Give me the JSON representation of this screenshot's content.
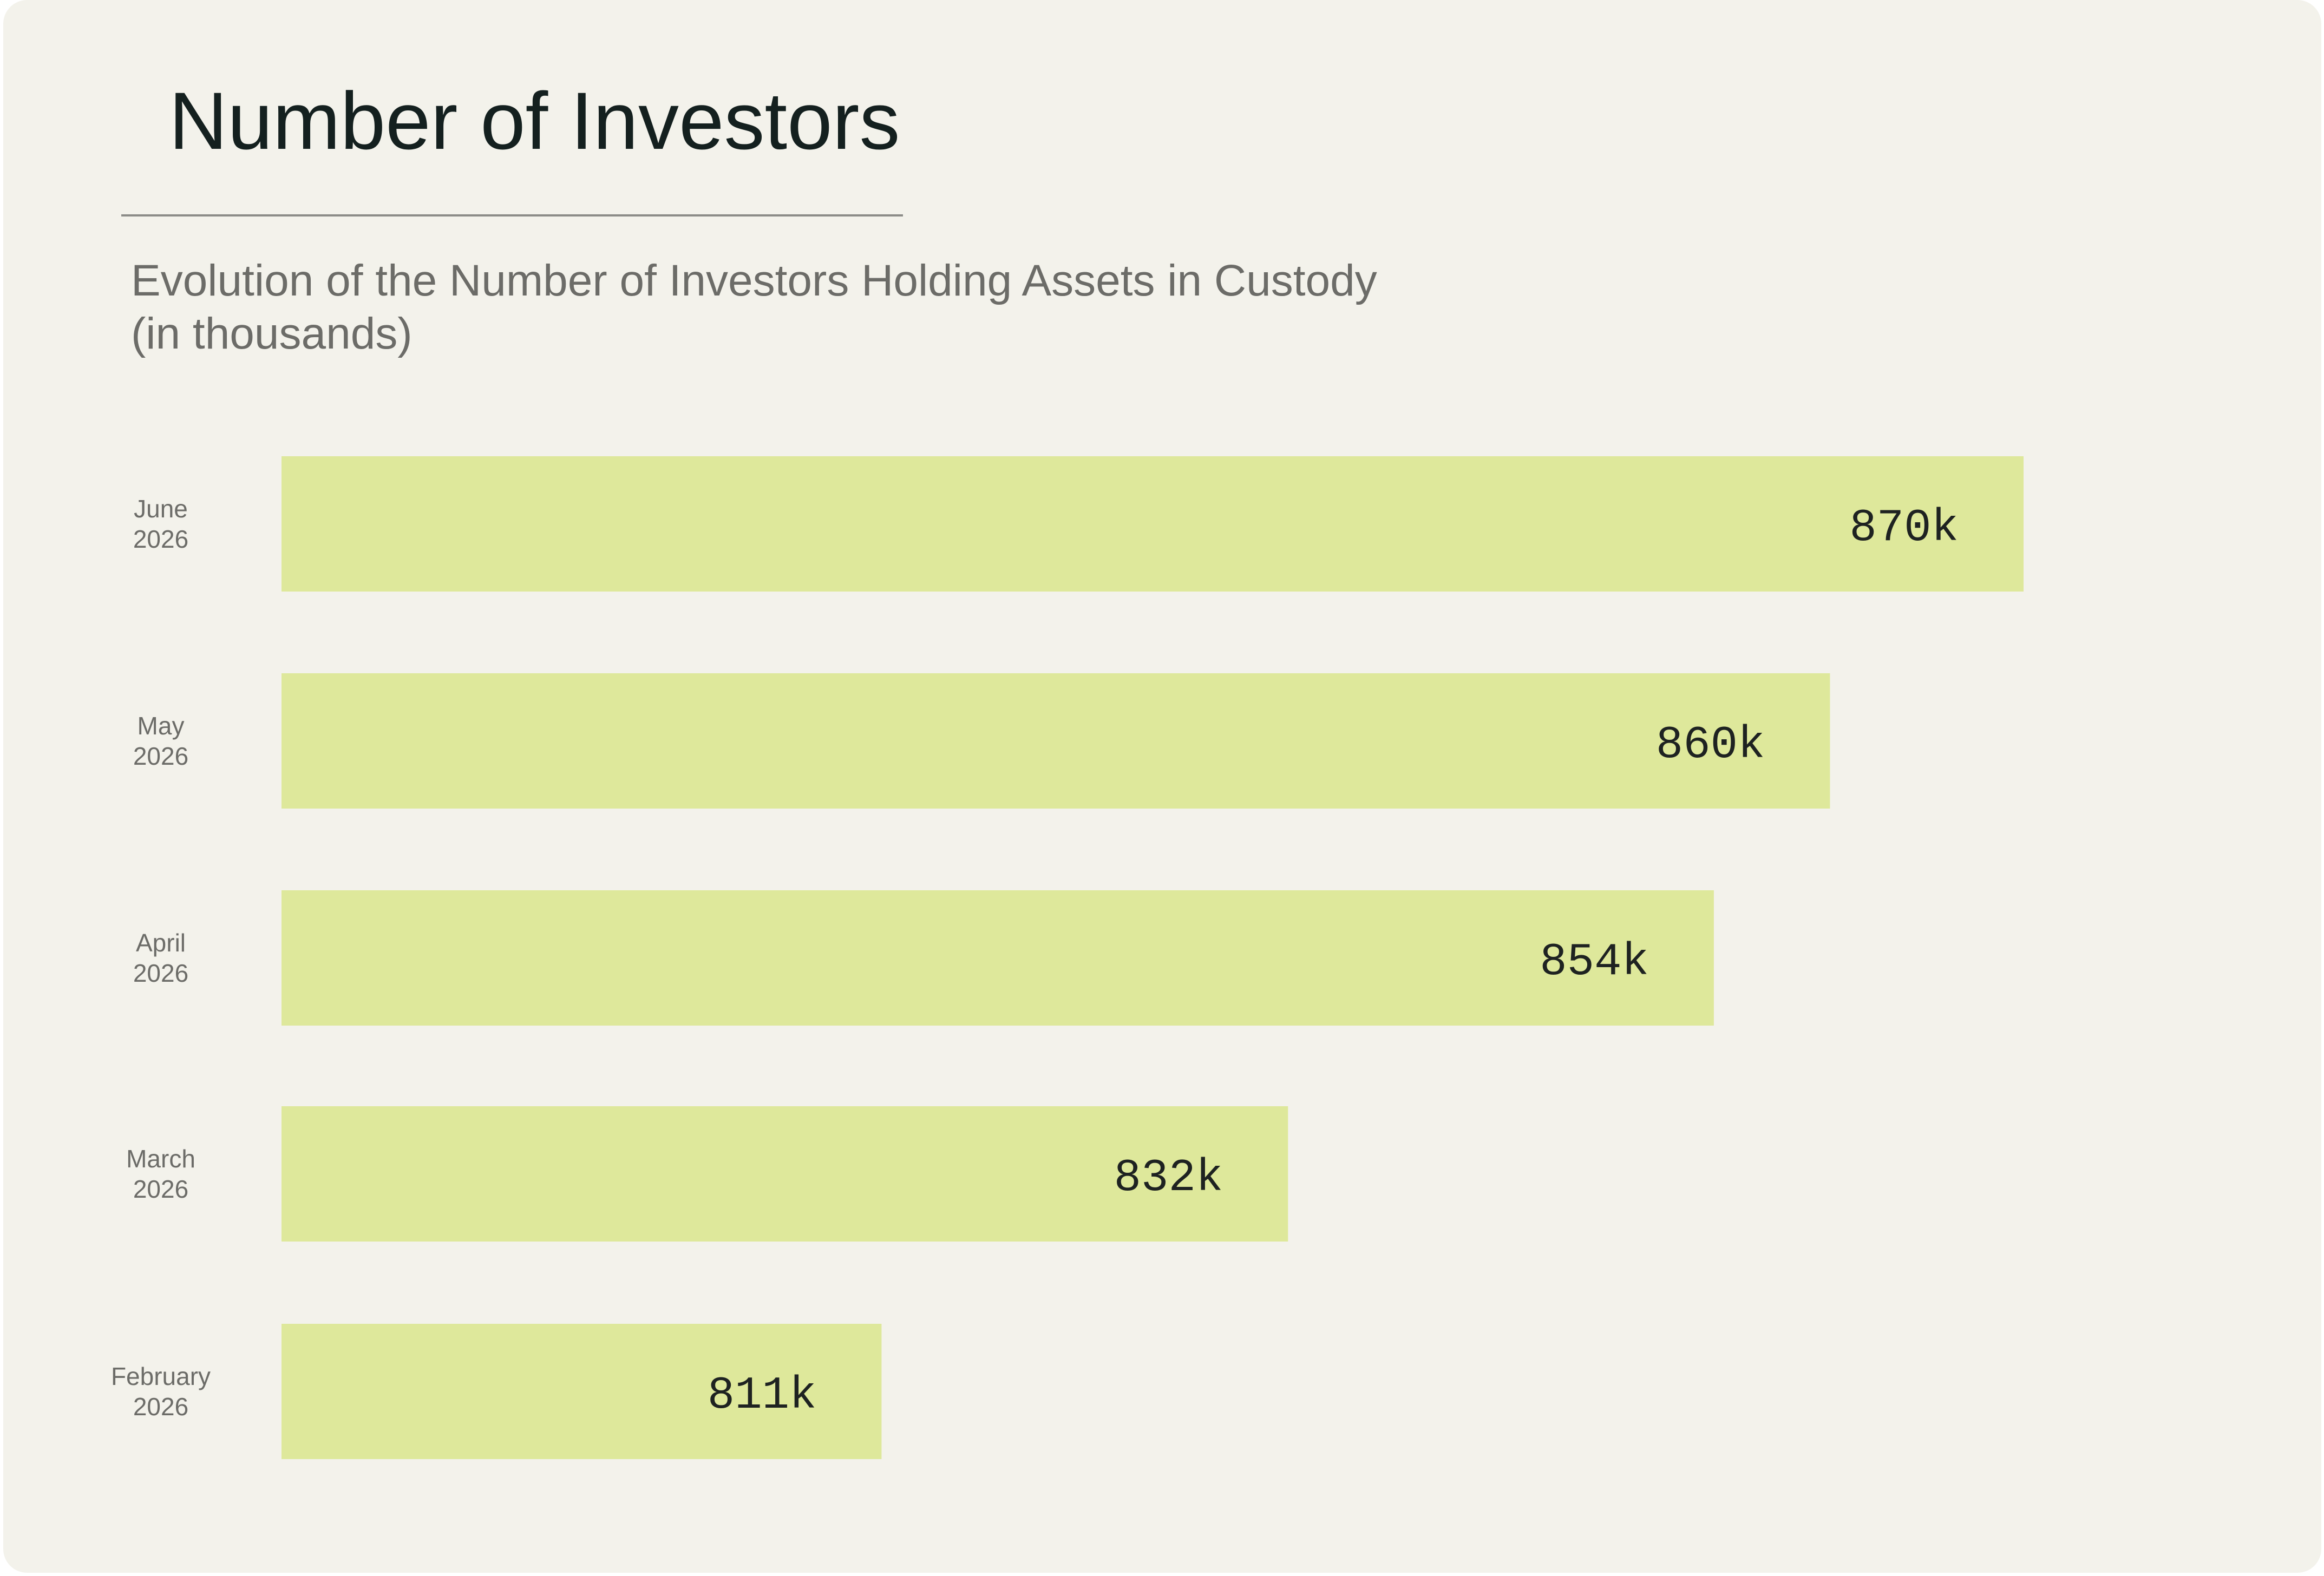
{
  "title": "Number of Investors",
  "subtitle_line1": "Evolution of the Number of Investors Holding Assets in Custody",
  "subtitle_line2": "(in thousands)",
  "colors": {
    "background": "#f3f2eb",
    "bar": "#dee89b",
    "title": "#14201f",
    "muted_text": "#6c6c68",
    "value_text": "#1e2221"
  },
  "chart_data": {
    "type": "bar",
    "orientation": "horizontal",
    "title": "Number of Investors",
    "subtitle": "Evolution of the Number of Investors Holding Assets in Custody (in thousands)",
    "categories": [
      [
        "June",
        "2026"
      ],
      [
        "May",
        "2026"
      ],
      [
        "April",
        "2026"
      ],
      [
        "March",
        "2026"
      ],
      [
        "February",
        "2026"
      ]
    ],
    "values": [
      870,
      860,
      854,
      832,
      811
    ],
    "value_labels": [
      "870k",
      "860k",
      "854k",
      "832k",
      "811k"
    ],
    "xlim": [
      780,
      870
    ],
    "grid": false,
    "legend": "none"
  }
}
